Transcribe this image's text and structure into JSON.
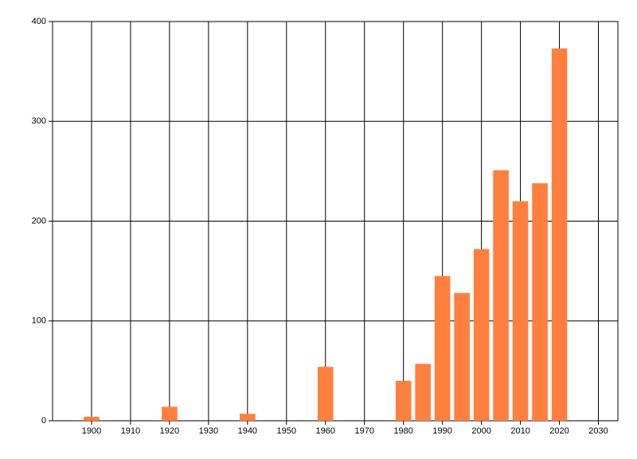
{
  "chart_data": {
    "type": "bar",
    "x": [
      1900,
      1920,
      1940,
      1960,
      1980,
      1985,
      1990,
      1995,
      2000,
      2005,
      2010,
      2015,
      2020
    ],
    "values": [
      4,
      14,
      7,
      54,
      40,
      57,
      145,
      128,
      172,
      251,
      220,
      238,
      373
    ],
    "color": "#ff7f3f",
    "xlim": [
      1890,
      2035
    ],
    "xticks": [
      1900,
      1910,
      1920,
      1930,
      1940,
      1950,
      1960,
      1970,
      1980,
      1990,
      2000,
      2010,
      2020,
      2030
    ],
    "ylim": [
      0,
      400
    ],
    "yticks": [
      0,
      100,
      200,
      300,
      400
    ],
    "grid": true
  }
}
